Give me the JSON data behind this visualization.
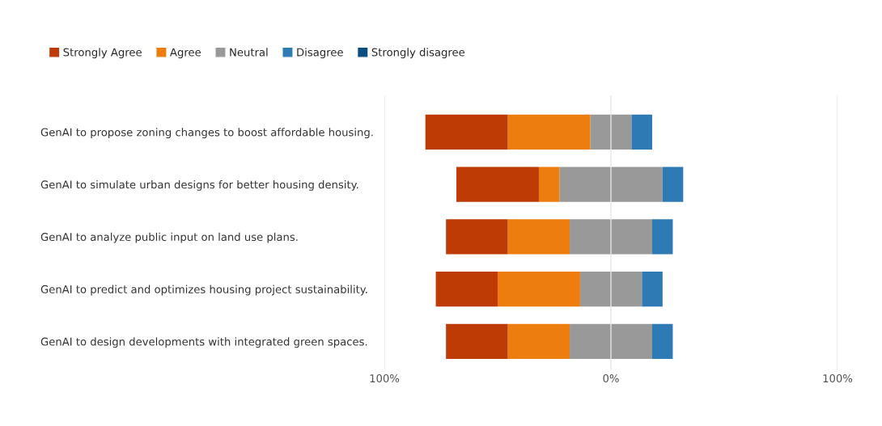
{
  "chart_data": {
    "type": "bar",
    "orientation": "horizontal",
    "stacked": true,
    "categories": [
      "GenAI to propose zoning changes to boost affordable housing.",
      "GenAI to simulate urban designs for better housing density.",
      "GenAI to analyze public input on land use plans.",
      "GenAI to predict and optimizes housing project sustainability.",
      "GenAI to design developments with integrated green spaces."
    ],
    "series": [
      {
        "color": "#999999",
        "values": [
          -9.1,
          -22.7,
          -18.2,
          -13.6,
          -18.2
        ]
      },
      {
        "name": "Agree",
        "color": "#ed7d0e",
        "values": [
          -36.4,
          -9.1,
          -27.3,
          -36.4,
          -27.3
        ]
      },
      {
        "name": "Strongly Agree",
        "color": "#bf3b05",
        "values": [
          -36.4,
          -36.4,
          -27.3,
          -27.3,
          -27.3
        ]
      },
      {
        "name": "Neutral",
        "color": "#999999",
        "values": [
          9.1,
          22.8,
          18.2,
          13.7,
          18.2
        ]
      },
      {
        "name": "Disagree",
        "color": "#2e7ab5",
        "values": [
          9.1,
          9.1,
          9.1,
          9.1,
          9.1
        ]
      },
      {
        "name": "Strongly disagree",
        "color": "#0b4f82",
        "values": [
          0,
          0,
          0,
          0,
          0
        ]
      }
    ],
    "xlim": [
      -100,
      100
    ],
    "xticks": [
      {
        "value": -100,
        "label": "100%"
      },
      {
        "value": 0,
        "label": "0%"
      },
      {
        "value": 100,
        "label": "100%"
      }
    ],
    "grid": "x",
    "legend": "top"
  }
}
